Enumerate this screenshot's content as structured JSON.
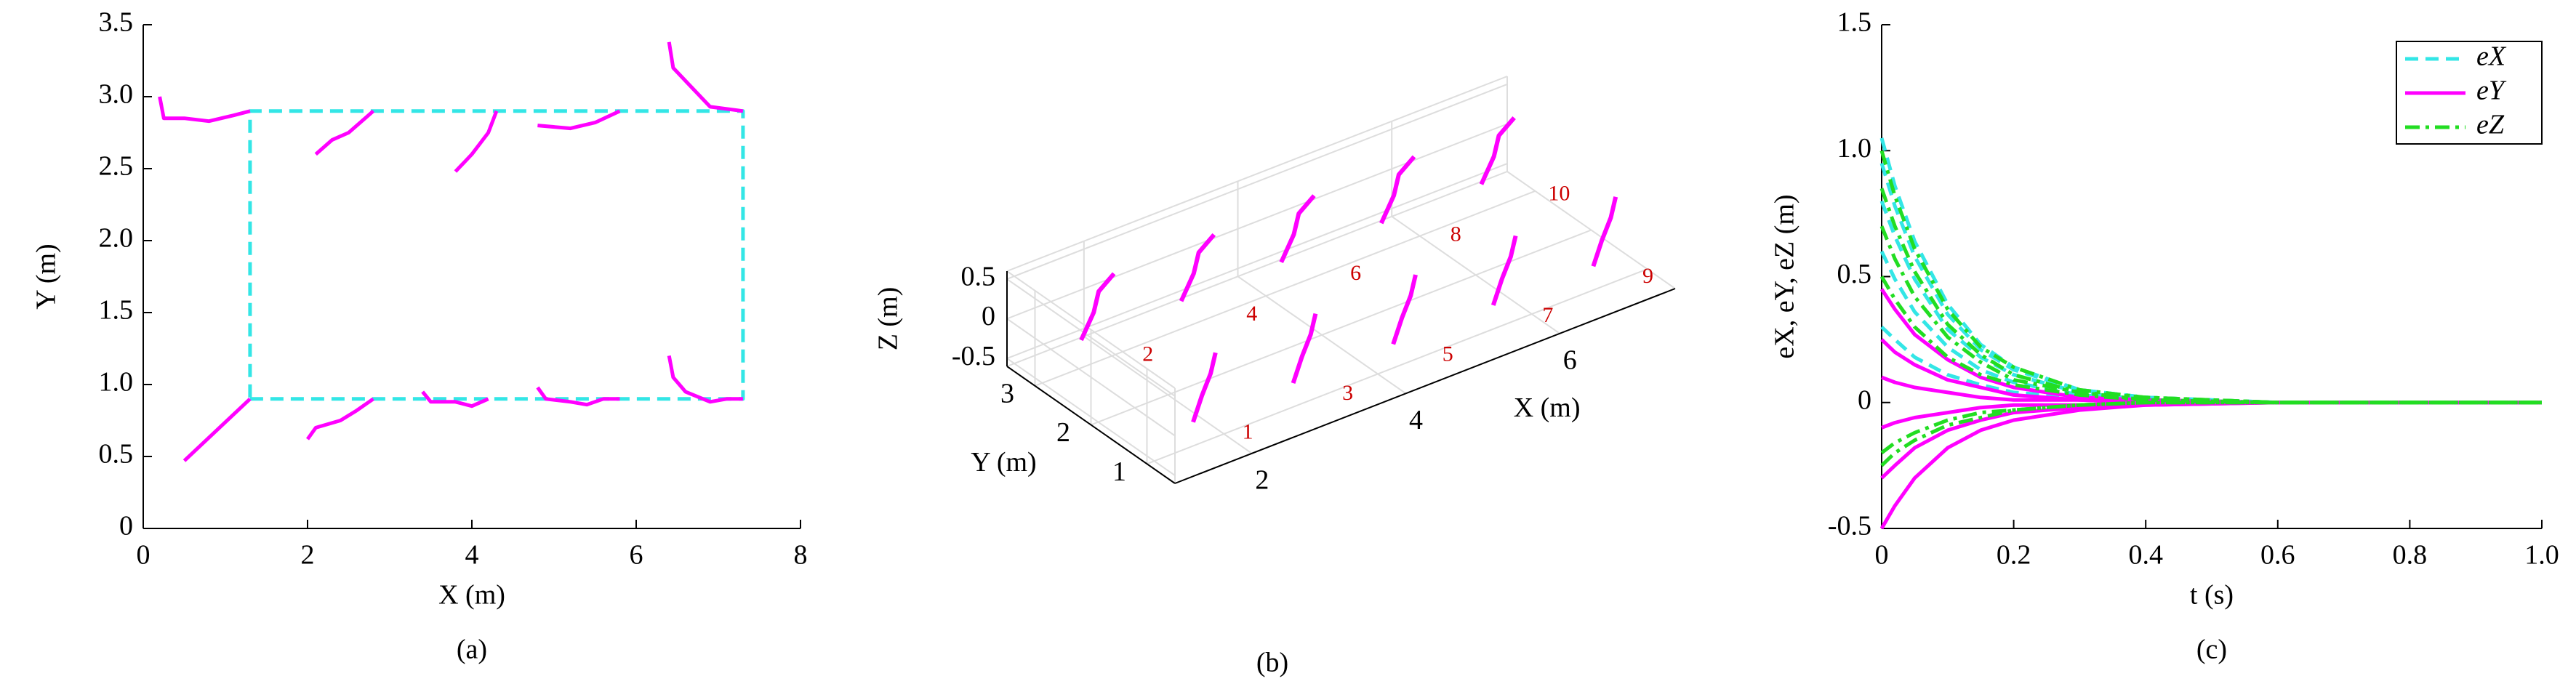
{
  "chart_data": [
    {
      "type": "line",
      "caption": "(a)",
      "xlabel": "X (m)",
      "ylabel": "Y (m)",
      "xlim": [
        0,
        8
      ],
      "ylim": [
        0,
        3.5
      ],
      "xticks": [
        0,
        2,
        4,
        6,
        8
      ],
      "yticks": [
        0,
        0.5,
        {
          "value": 1,
          "label": "1.0"
        },
        1.5,
        {
          "value": 2,
          "label": "2.0"
        },
        2.5,
        {
          "value": 3,
          "label": "3.0"
        },
        3.5
      ],
      "series": [
        {
          "color": "#33e6e6",
          "linestyle": "dashed",
          "x": [
            1.3,
            7.3,
            7.3,
            1.3,
            1.3
          ],
          "y": [
            0.9,
            0.9,
            2.9,
            2.9,
            0.9
          ]
        },
        {
          "color": "#ff00ff",
          "linestyle": "solid",
          "x": [
            0.5,
            1.3,
            null,
            2.0,
            2.1,
            2.4,
            2.6,
            2.8,
            null,
            3.4,
            3.5,
            3.8,
            4.0,
            4.2,
            null,
            4.8,
            4.9,
            5.2,
            5.4,
            5.6,
            5.8,
            null,
            6.4,
            6.45,
            6.6,
            6.9,
            7.1,
            7.3,
            null,
            0.2,
            0.25,
            0.5,
            0.8,
            1.1,
            1.3,
            null,
            2.1,
            2.3,
            2.5,
            2.7,
            2.8,
            null,
            3.8,
            4.0,
            4.2,
            4.3,
            null,
            4.8,
            5.2,
            5.5,
            5.8,
            null,
            6.4,
            6.45,
            6.7,
            6.9,
            7.3
          ],
          "y": [
            0.47,
            0.9,
            null,
            0.62,
            0.7,
            0.75,
            0.82,
            0.9,
            null,
            0.95,
            0.88,
            0.88,
            0.85,
            0.9,
            null,
            0.98,
            0.9,
            0.88,
            0.86,
            0.9,
            0.9,
            null,
            1.2,
            1.05,
            0.95,
            0.88,
            0.9,
            0.9,
            null,
            3.0,
            2.85,
            2.85,
            2.83,
            2.87,
            2.9,
            null,
            2.6,
            2.7,
            2.75,
            2.85,
            2.9,
            null,
            2.48,
            2.6,
            2.75,
            2.9,
            null,
            2.8,
            2.78,
            2.82,
            2.9,
            null,
            3.38,
            3.2,
            3.05,
            2.93,
            2.9
          ]
        }
      ]
    },
    {
      "type": "line3d",
      "caption": "(b)",
      "xlabel": "X (m)",
      "ylabel": "Y (m)",
      "zlabel": "Z (m)",
      "xlim": [
        1,
        7.5
      ],
      "ylim": [
        0.5,
        3.5
      ],
      "zlim": [
        -0.6,
        0.6
      ],
      "xticks": [
        2,
        4,
        6
      ],
      "yticks": [
        1,
        2,
        3
      ],
      "zticks": [
        -0.5,
        0,
        0.5
      ],
      "series": [
        {
          "color": "#ff00ff",
          "x": [
            1.6,
            1.75,
            1.9,
            2.0
          ],
          "y": [
            1.0,
            1.05,
            1.1,
            1.15
          ],
          "z": [
            -0.3,
            -0.05,
            0.15,
            0.35
          ]
        },
        {
          "color": "#ff00ff",
          "x": [
            1.6,
            1.8,
            1.9,
            2.1
          ],
          "y": [
            3.0,
            3.05,
            3.1,
            3.1
          ],
          "z": [
            -0.25,
            0,
            0.2,
            0.35
          ]
        },
        {
          "color": "#ff00ff",
          "x": [
            2.9,
            3.05,
            3.2,
            3.3
          ],
          "y": [
            1.0,
            1.05,
            1.1,
            1.15
          ],
          "z": [
            -0.3,
            -0.05,
            0.15,
            0.35
          ]
        },
        {
          "color": "#ff00ff",
          "x": [
            2.9,
            3.1,
            3.2,
            3.4
          ],
          "y": [
            3.0,
            3.05,
            3.1,
            3.1
          ],
          "z": [
            -0.25,
            0,
            0.2,
            0.35
          ]
        },
        {
          "color": "#ff00ff",
          "x": [
            4.2,
            4.35,
            4.5,
            4.6
          ],
          "y": [
            1.0,
            1.05,
            1.1,
            1.15
          ],
          "z": [
            -0.3,
            -0.05,
            0.15,
            0.35
          ]
        },
        {
          "color": "#ff00ff",
          "x": [
            4.2,
            4.4,
            4.5,
            4.7
          ],
          "y": [
            3.0,
            3.05,
            3.1,
            3.1
          ],
          "z": [
            -0.25,
            0,
            0.2,
            0.35
          ]
        },
        {
          "color": "#ff00ff",
          "x": [
            5.5,
            5.65,
            5.8,
            5.9
          ],
          "y": [
            1.0,
            1.05,
            1.1,
            1.15
          ],
          "z": [
            -0.3,
            -0.05,
            0.15,
            0.35
          ]
        },
        {
          "color": "#ff00ff",
          "x": [
            5.5,
            5.7,
            5.8,
            6.0
          ],
          "y": [
            3.0,
            3.05,
            3.1,
            3.1
          ],
          "z": [
            -0.25,
            0,
            0.2,
            0.35
          ]
        },
        {
          "color": "#ff00ff",
          "x": [
            6.8,
            6.95,
            7.1,
            7.2
          ],
          "y": [
            1.0,
            1.05,
            1.1,
            1.15
          ],
          "z": [
            -0.3,
            -0.05,
            0.15,
            0.35
          ]
        },
        {
          "color": "#ff00ff",
          "x": [
            6.8,
            7.0,
            7.1,
            7.3
          ],
          "y": [
            3.0,
            3.05,
            3.1,
            3.1
          ],
          "z": [
            -0.25,
            0,
            0.2,
            0.35
          ]
        }
      ],
      "annotations": [
        {
          "text": "1",
          "x": 2.2,
          "y": 0.85,
          "z": -0.6
        },
        {
          "text": "2",
          "x": 2.3,
          "y": 2.77,
          "z": -0.6
        },
        {
          "text": "3",
          "x": 3.5,
          "y": 0.85,
          "z": -0.6
        },
        {
          "text": "4",
          "x": 3.65,
          "y": 2.77,
          "z": -0.6
        },
        {
          "text": "5",
          "x": 4.8,
          "y": 0.85,
          "z": -0.6
        },
        {
          "text": "6",
          "x": 5.0,
          "y": 2.77,
          "z": -0.6
        },
        {
          "text": "7",
          "x": 6.1,
          "y": 0.85,
          "z": -0.6
        },
        {
          "text": "8",
          "x": 6.3,
          "y": 2.77,
          "z": -0.6
        },
        {
          "text": "9",
          "x": 7.4,
          "y": 0.85,
          "z": -0.6
        },
        {
          "text": "10",
          "x": 7.65,
          "y": 2.78,
          "z": -0.6
        }
      ]
    },
    {
      "type": "line",
      "caption": "(c)",
      "xlabel": "t (s)",
      "ylabel": "eX, eY, eZ (m)",
      "xlim": [
        0,
        1
      ],
      "ylim": [
        -0.5,
        1.5
      ],
      "xticks": [
        0,
        0.2,
        0.4,
        0.6,
        0.8,
        {
          "value": 1,
          "label": "1.0"
        }
      ],
      "yticks": [
        -0.5,
        0,
        0.5,
        {
          "value": 1,
          "label": "1.0"
        },
        1.5
      ],
      "legend": "upper right",
      "x": [
        0,
        0.02,
        0.05,
        0.1,
        0.15,
        0.2,
        0.3,
        0.4,
        0.6,
        0.8,
        1.0
      ],
      "series": [
        {
          "name": "eX",
          "color": "#33e6e6",
          "linestyle": "dashed",
          "values": [
            1.05,
            0.86,
            0.64,
            0.39,
            0.23,
            0.14,
            0.05,
            0.02,
            0,
            0,
            0
          ]
        },
        {
          "color": "#33e6e6",
          "linestyle": "dashed",
          "values": [
            0.95,
            0.78,
            0.58,
            0.35,
            0.21,
            0.13,
            0.05,
            0.02,
            0,
            0,
            0
          ]
        },
        {
          "color": "#33e6e6",
          "linestyle": "dashed",
          "values": [
            0.8,
            0.66,
            0.49,
            0.29,
            0.18,
            0.11,
            0.04,
            0.01,
            0,
            0,
            0
          ]
        },
        {
          "color": "#33e6e6",
          "linestyle": "dashed",
          "values": [
            0.6,
            0.49,
            0.36,
            0.22,
            0.13,
            0.08,
            0.03,
            0.01,
            0,
            0,
            0
          ]
        },
        {
          "color": "#33e6e6",
          "linestyle": "dashed",
          "values": [
            0.3,
            0.25,
            0.18,
            0.11,
            0.07,
            0.04,
            0.02,
            0.01,
            0,
            0,
            0
          ]
        },
        {
          "name": "eY",
          "color": "#ff00ff",
          "linestyle": "solid",
          "values": [
            0.45,
            0.37,
            0.27,
            0.17,
            0.1,
            0.06,
            0.02,
            0.01,
            0,
            0,
            0
          ]
        },
        {
          "color": "#ff00ff",
          "linestyle": "solid",
          "values": [
            0.25,
            0.2,
            0.15,
            0.09,
            0.06,
            0.03,
            0.01,
            0,
            0,
            0,
            0
          ]
        },
        {
          "color": "#ff00ff",
          "linestyle": "solid",
          "values": [
            0.1,
            0.08,
            0.06,
            0.04,
            0.02,
            0.01,
            0.01,
            0,
            0,
            0,
            0
          ]
        },
        {
          "color": "#ff00ff",
          "linestyle": "solid",
          "values": [
            -0.1,
            -0.08,
            -0.06,
            -0.04,
            -0.02,
            -0.01,
            -0.01,
            0,
            0,
            0,
            0
          ]
        },
        {
          "color": "#ff00ff",
          "linestyle": "solid",
          "values": [
            -0.3,
            -0.25,
            -0.18,
            -0.11,
            -0.07,
            -0.04,
            -0.02,
            -0.01,
            0,
            0,
            0
          ]
        },
        {
          "color": "#ff00ff",
          "linestyle": "solid",
          "values": [
            -0.5,
            -0.41,
            -0.3,
            -0.18,
            -0.11,
            -0.07,
            -0.03,
            -0.01,
            0,
            0,
            0
          ]
        },
        {
          "name": "eZ",
          "color": "#22dd22",
          "linestyle": "dashdot",
          "values": [
            1,
            0.82,
            0.61,
            0.37,
            0.22,
            0.14,
            0.05,
            0.02,
            0,
            0,
            0
          ]
        },
        {
          "color": "#22dd22",
          "linestyle": "dashdot",
          "values": [
            0.85,
            0.7,
            0.52,
            0.31,
            0.19,
            0.11,
            0.04,
            0.02,
            0,
            0,
            0
          ]
        },
        {
          "color": "#22dd22",
          "linestyle": "dashdot",
          "values": [
            0.7,
            0.57,
            0.42,
            0.26,
            0.16,
            0.09,
            0.04,
            0.01,
            0,
            0,
            0
          ]
        },
        {
          "color": "#22dd22",
          "linestyle": "dashdot",
          "values": [
            0.5,
            0.41,
            0.3,
            0.18,
            0.11,
            0.07,
            0.03,
            0.01,
            0,
            0,
            0
          ]
        },
        {
          "color": "#22dd22",
          "linestyle": "dashdot",
          "values": [
            -0.2,
            -0.16,
            -0.12,
            -0.07,
            -0.04,
            -0.03,
            -0.01,
            0,
            0,
            0,
            0
          ]
        },
        {
          "color": "#22dd22",
          "linestyle": "dashdot",
          "values": [
            -0.25,
            -0.2,
            -0.15,
            -0.09,
            -0.06,
            -0.03,
            -0.01,
            0,
            0,
            0,
            0
          ]
        }
      ]
    }
  ]
}
